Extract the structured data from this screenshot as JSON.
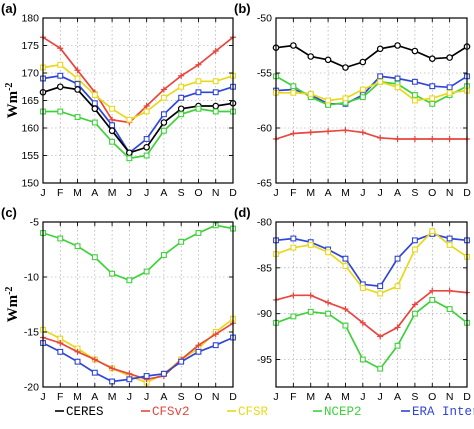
{
  "months": [
    "J",
    "F",
    "M",
    "A",
    "M",
    "J",
    "J",
    "A",
    "S",
    "O",
    "N",
    "D"
  ],
  "ylabel": "Wm",
  "ylabel_sup": "-2",
  "legend": [
    {
      "text": "CERES",
      "color": "#000000"
    },
    {
      "text": "CFSv2",
      "color": "#e8463f"
    },
    {
      "text": "CFSR",
      "color": "#e8d81c"
    },
    {
      "text": "NCEP2",
      "color": "#3fd13b"
    },
    {
      "text": "ERA Interim",
      "color": "#2f45d6"
    }
  ],
  "styles": {
    "CERES": {
      "color": "#000000",
      "marker": "circle"
    },
    "CFSv2": {
      "color": "#e8463f",
      "marker": "plus"
    },
    "CFSR": {
      "color": "#e8d81c",
      "marker": "square"
    },
    "NCEP2": {
      "color": "#3fd13b",
      "marker": "square"
    },
    "ERA Interim": {
      "color": "#2f45d6",
      "marker": "square"
    }
  },
  "chart_data": [
    {
      "panel": "(a)",
      "type": "line",
      "ylim": [
        150,
        180
      ],
      "yticks": [
        150,
        155,
        160,
        165,
        170,
        175,
        180
      ],
      "series": [
        {
          "name": "CFSv2",
          "values": [
            176.5,
            174.5,
            170.5,
            166.5,
            161.5,
            161.0,
            164.0,
            167.0,
            169.5,
            171.5,
            174.0,
            176.5
          ]
        },
        {
          "name": "CFSR",
          "values": [
            171.0,
            171.5,
            169.0,
            166.0,
            163.5,
            161.5,
            163.0,
            165.5,
            167.5,
            168.5,
            168.5,
            169.5
          ]
        },
        {
          "name": "ERA Interim",
          "values": [
            169.0,
            169.5,
            168.0,
            164.5,
            160.5,
            155.5,
            158.0,
            162.5,
            165.5,
            166.5,
            166.5,
            167.5
          ]
        },
        {
          "name": "CERES",
          "values": [
            166.5,
            167.5,
            167.0,
            163.5,
            159.5,
            155.5,
            156.5,
            161.0,
            163.5,
            164.0,
            164.0,
            164.5
          ]
        },
        {
          "name": "NCEP2",
          "values": [
            163.0,
            163.0,
            162.0,
            161.0,
            157.5,
            154.5,
            155.0,
            159.5,
            162.5,
            163.5,
            163.0,
            163.0
          ]
        }
      ]
    },
    {
      "panel": "(b)",
      "type": "line",
      "ylim": [
        -65,
        -50
      ],
      "yticks": [
        -65,
        -60,
        -55,
        -50
      ],
      "series": [
        {
          "name": "CERES",
          "values": [
            -52.7,
            -52.5,
            -53.5,
            -53.8,
            -54.5,
            -54.0,
            -52.8,
            -52.5,
            -53.0,
            -53.7,
            -53.6,
            -52.6
          ]
        },
        {
          "name": "ERA Interim",
          "values": [
            -56.6,
            -56.5,
            -57.0,
            -57.8,
            -57.8,
            -57.0,
            -55.3,
            -55.5,
            -55.8,
            -56.2,
            -56.3,
            -55.3
          ]
        },
        {
          "name": "NCEP2",
          "values": [
            -55.3,
            -56.2,
            -57.2,
            -57.9,
            -57.7,
            -57.2,
            -55.8,
            -56.0,
            -57.0,
            -57.8,
            -57.0,
            -56.2
          ]
        },
        {
          "name": "CFSR",
          "values": [
            -56.8,
            -56.8,
            -56.9,
            -57.5,
            -57.3,
            -56.5,
            -55.8,
            -56.3,
            -57.5,
            -57.3,
            -56.8,
            -56.6
          ]
        },
        {
          "name": "CFSv2",
          "values": [
            -61.0,
            -60.5,
            -60.4,
            -60.3,
            -60.2,
            -60.4,
            -60.9,
            -61.0,
            -61.0,
            -61.0,
            -61.0,
            -61.0
          ]
        }
      ]
    },
    {
      "panel": "(c)",
      "type": "line",
      "ylim": [
        -20,
        -5
      ],
      "yticks": [
        -20,
        -15,
        -10,
        -5
      ],
      "series": [
        {
          "name": "NCEP2",
          "values": [
            -6.0,
            -6.5,
            -7.2,
            -8.2,
            -9.7,
            -10.3,
            -9.5,
            -8.0,
            -6.8,
            -6.0,
            -5.3,
            -5.6
          ]
        },
        {
          "name": "CFSR",
          "values": [
            -14.8,
            -15.6,
            -16.5,
            -17.5,
            -18.3,
            -19.0,
            -19.6,
            -18.8,
            -17.5,
            -16.5,
            -15.0,
            -13.8
          ]
        },
        {
          "name": "CFSv2",
          "values": [
            -15.5,
            -16.0,
            -16.8,
            -17.5,
            -18.3,
            -18.8,
            -19.3,
            -19.0,
            -17.5,
            -16.2,
            -15.2,
            -14.2
          ]
        },
        {
          "name": "ERA Interim",
          "values": [
            -16.0,
            -16.8,
            -17.7,
            -18.7,
            -19.5,
            -19.3,
            -19.0,
            -18.8,
            -17.7,
            -16.8,
            -16.2,
            -15.5
          ]
        }
      ]
    },
    {
      "panel": "(d)",
      "type": "line",
      "ylim": [
        -98,
        -80
      ],
      "yticks": [
        -95,
        -90,
        -85,
        -80
      ],
      "series": [
        {
          "name": "ERA Interim",
          "values": [
            -82.0,
            -81.8,
            -82.2,
            -83.0,
            -84.0,
            -86.8,
            -87.0,
            -84.0,
            -82.0,
            -81.3,
            -81.8,
            -82.0
          ]
        },
        {
          "name": "CFSR",
          "values": [
            -83.5,
            -82.8,
            -82.5,
            -83.3,
            -84.8,
            -87.2,
            -87.8,
            -87.0,
            -83.0,
            -81.0,
            -82.5,
            -83.8
          ]
        },
        {
          "name": "CFSv2",
          "values": [
            -88.5,
            -88.0,
            -88.0,
            -88.8,
            -89.5,
            -91.0,
            -92.5,
            -91.5,
            -89.0,
            -87.5,
            -87.5,
            -87.7
          ]
        },
        {
          "name": "NCEP2",
          "values": [
            -91.0,
            -90.3,
            -89.8,
            -90.0,
            -91.3,
            -95.0,
            -96.0,
            -93.5,
            -90.0,
            -88.5,
            -89.5,
            -91.0
          ]
        }
      ]
    }
  ]
}
